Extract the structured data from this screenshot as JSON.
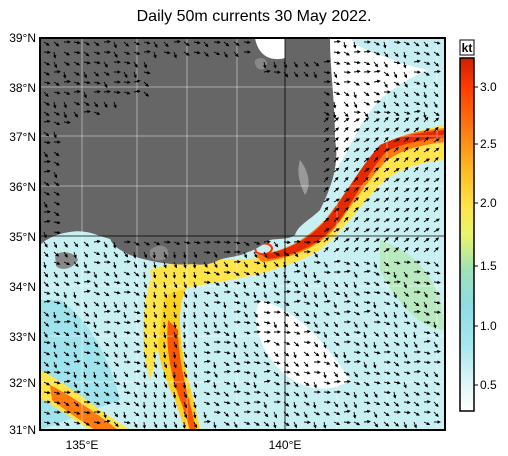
{
  "title": "Daily 50m currents 30 May 2022.",
  "map": {
    "lat_labels": [
      "39°N",
      "38°N",
      "37°N",
      "36°N",
      "35°N",
      "34°N",
      "33°N",
      "32°N",
      "31°N"
    ],
    "lon_labels": [
      "135°E",
      "140°E"
    ],
    "lat_range": [
      31,
      39
    ],
    "lon_range": [
      133.8,
      144.3
    ],
    "land_color": "#666666",
    "grid_lines": true
  },
  "colorbar": {
    "unit_label": "kt",
    "ticks": [
      "3.0",
      "2.5",
      "2.0",
      "1.5",
      "1.0",
      "0.5"
    ],
    "range": [
      0.25,
      3.25
    ],
    "colors": [
      "#ffffff",
      "#d9f5f6",
      "#9fe6ee",
      "#7fd8e8",
      "#a8e2b0",
      "#ffff4d",
      "#ffd21f",
      "#ffa500",
      "#ff6a00",
      "#ff3300",
      "#cc1f00"
    ]
  }
}
